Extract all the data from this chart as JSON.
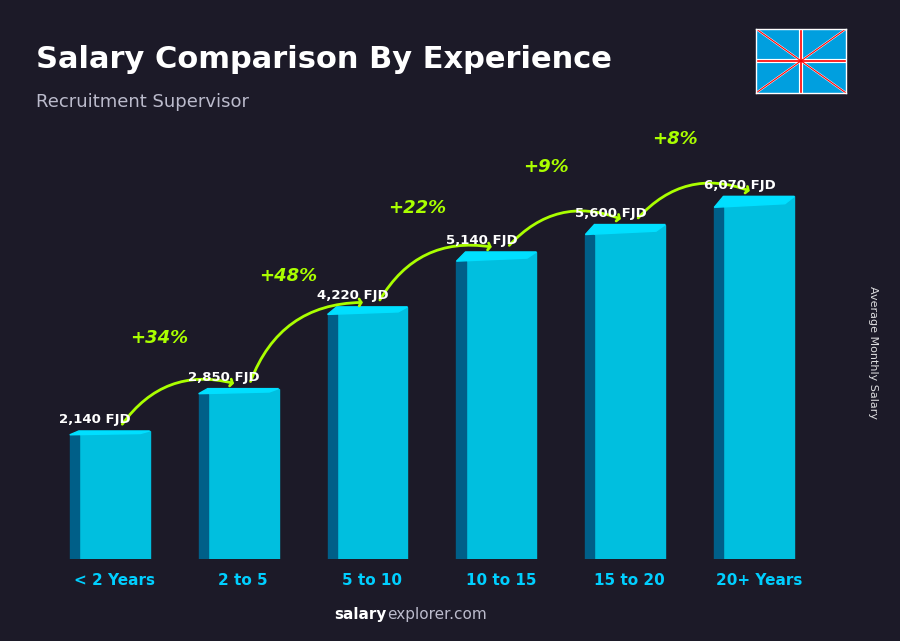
{
  "title": "Salary Comparison By Experience",
  "subtitle": "Recruitment Supervisor",
  "categories": [
    "< 2 Years",
    "2 to 5",
    "5 to 10",
    "10 to 15",
    "15 to 20",
    "20+ Years"
  ],
  "values": [
    2140,
    2850,
    4220,
    5140,
    5600,
    6070
  ],
  "bar_color_top": "#00cfff",
  "bar_color_mid": "#00aadd",
  "bar_color_side": "#007aaa",
  "labels": [
    "2,140 FJD",
    "2,850 FJD",
    "4,220 FJD",
    "5,140 FJD",
    "5,600 FJD",
    "6,070 FJD"
  ],
  "pct_labels": [
    "+34%",
    "+48%",
    "+22%",
    "+9%",
    "+8%"
  ],
  "ylabel": "Average Monthly Salary",
  "website": "salary",
  "website2": "explorer.com",
  "background_color": "#1a1a2e",
  "title_color": "#ffffff",
  "subtitle_color": "#cccccc",
  "label_color": "#ffffff",
  "pct_color": "#aaff00",
  "tick_color": "#00cfff",
  "ylim": [
    0,
    7500
  ]
}
